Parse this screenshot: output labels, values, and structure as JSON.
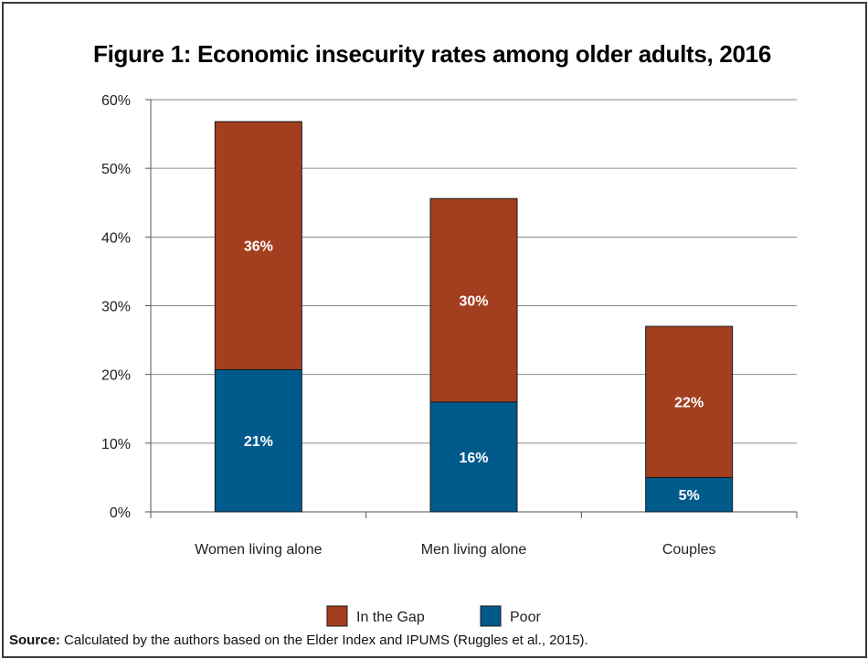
{
  "chart_data": {
    "type": "bar",
    "stacked": true,
    "title": "Figure 1:  Economic insecurity rates among older adults, 2016",
    "categories": [
      "Women living alone",
      "Men living alone",
      "Couples"
    ],
    "series": [
      {
        "name": "Poor",
        "color": "#005a8c",
        "values": [
          20.7,
          16.0,
          5.0
        ],
        "labels": [
          "21%",
          "16%",
          "5%"
        ]
      },
      {
        "name": "In the Gap",
        "color": "#a33f1f",
        "values": [
          36.1,
          29.6,
          22.0
        ],
        "labels": [
          "36%",
          "30%",
          "22%"
        ]
      }
    ],
    "ylim": [
      0,
      60
    ],
    "yticks": [
      0,
      10,
      20,
      30,
      40,
      50,
      60
    ],
    "ytick_labels": [
      "0%",
      "10%",
      "20%",
      "30%",
      "40%",
      "50%",
      "60%"
    ],
    "grid": true,
    "legend": {
      "placement": "bottom-center",
      "entries": [
        {
          "name": "In the Gap",
          "color": "#a33f1f"
        },
        {
          "name": "Poor",
          "color": "#005a8c"
        }
      ]
    }
  },
  "source": {
    "label": "Source:",
    "text": " Calculated by the authors based on the Elder Index and IPUMS (Ruggles et al., 2015)."
  }
}
